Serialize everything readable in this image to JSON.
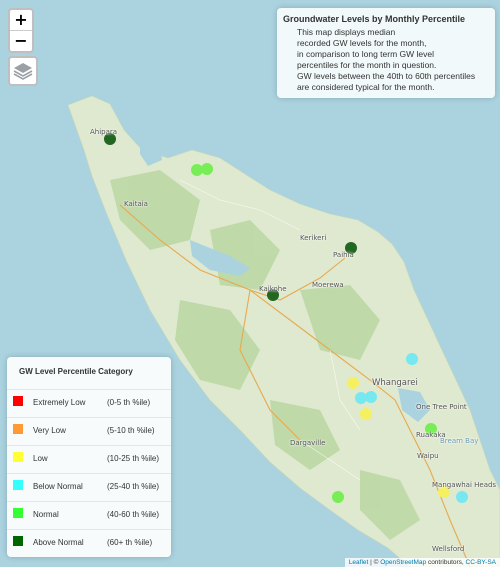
{
  "map": {
    "info": {
      "title": "Groundwater Levels by Monthly Percentile",
      "lines": [
        "This map displays median",
        "recorded GW levels for the month,",
        "in comparison to long term GW level",
        "percentiles for the month in question.",
        "GW levels between the 40th to 60th percentiles",
        "are considered typical for the month."
      ]
    },
    "zoom": {
      "in_label": "+",
      "out_label": "−"
    },
    "layers_icon": "layers-icon",
    "places": [
      "Ahipara",
      "Kaitaia",
      "Kerikeri",
      "Paihia",
      "Kaikohe",
      "Moerewa",
      "Whangarei",
      "One Tree Point",
      "Ruakaka",
      "Bream Bay",
      "Waipu",
      "Dargaville",
      "Mangawhai Heads",
      "Wellsford"
    ],
    "legend": {
      "title": "GW Level Percentile Category",
      "categories": [
        {
          "name": "Extremely Low",
          "range": "(0-5 th %ile)",
          "color": "#ff0000"
        },
        {
          "name": "Very Low",
          "range": "(5-10 th %ile)",
          "color": "#ff9933"
        },
        {
          "name": "Low",
          "range": "(10-25 th %ile)",
          "color": "#ffff33"
        },
        {
          "name": "Below Normal",
          "range": "(25-40 th %ile)",
          "color": "#33ffff"
        },
        {
          "name": "Normal",
          "range": "(40-60 th %ile)",
          "color": "#33ff33"
        },
        {
          "name": "Above Normal",
          "range": "(60+ th %ile)",
          "color": "#006600"
        }
      ]
    },
    "attribution": {
      "leaflet": "Leaflet",
      "sep": " | © ",
      "osm": "OpenStreetMap",
      "contrib": " contributors, ",
      "license": "CC-BY-SA"
    }
  }
}
